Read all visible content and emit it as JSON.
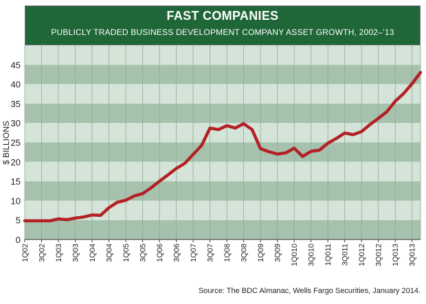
{
  "colors": {
    "header_bg": "#1f6638",
    "band_dark": "#a6c2ad",
    "band_light": "#d5e4d8",
    "line": "#b32026",
    "grid": "#8fa896"
  },
  "chart_data": {
    "type": "line",
    "title": "FAST COMPANIES",
    "subtitle": "PUBLICLY TRADED BUSINESS DEVELOPMENT COMPANY ASSET GROWTH, 2002–’13",
    "ylabel": "$ BILLIONS",
    "xlabel": "",
    "ylim": [
      0,
      50
    ],
    "yticks": [
      "0",
      "5",
      "10",
      "15",
      "20",
      "25",
      "30",
      "35",
      "40",
      "45"
    ],
    "x_tick_labels": [
      "1Q02",
      "3Q02",
      "1Q03",
      "3Q03",
      "1Q04",
      "3Q04",
      "1Q05",
      "3Q05",
      "1Q06",
      "3Q06",
      "1Q07",
      "3Q07",
      "1Q08",
      "3Q08",
      "1Q09",
      "3Q09",
      "1Q010",
      "3Q010",
      "1Q011",
      "3Q011",
      "1Q012",
      "3Q012",
      "1Q013",
      "3Q013"
    ],
    "grid": "horizontal bands",
    "series": [
      {
        "values": [
          4.8,
          4.8,
          4.8,
          4.8,
          5.3,
          5.1,
          5.5,
          5.8,
          6.3,
          6.2,
          8.2,
          9.6,
          10.1,
          11.2,
          11.8,
          13.3,
          15.0,
          16.6,
          18.3,
          19.6,
          21.9,
          24.2,
          28.7,
          28.3,
          29.3,
          28.7,
          29.8,
          28.3,
          23.4,
          22.6,
          22.0,
          22.3,
          23.5,
          21.4,
          22.7,
          23.0,
          24.8,
          26.0,
          27.4,
          27.0,
          27.8,
          29.6,
          31.2,
          32.9,
          35.6,
          37.6,
          40.1,
          43.0
        ]
      }
    ]
  },
  "source": "Source: The BDC Almanac, Wells Fargo Securities, January 2014."
}
